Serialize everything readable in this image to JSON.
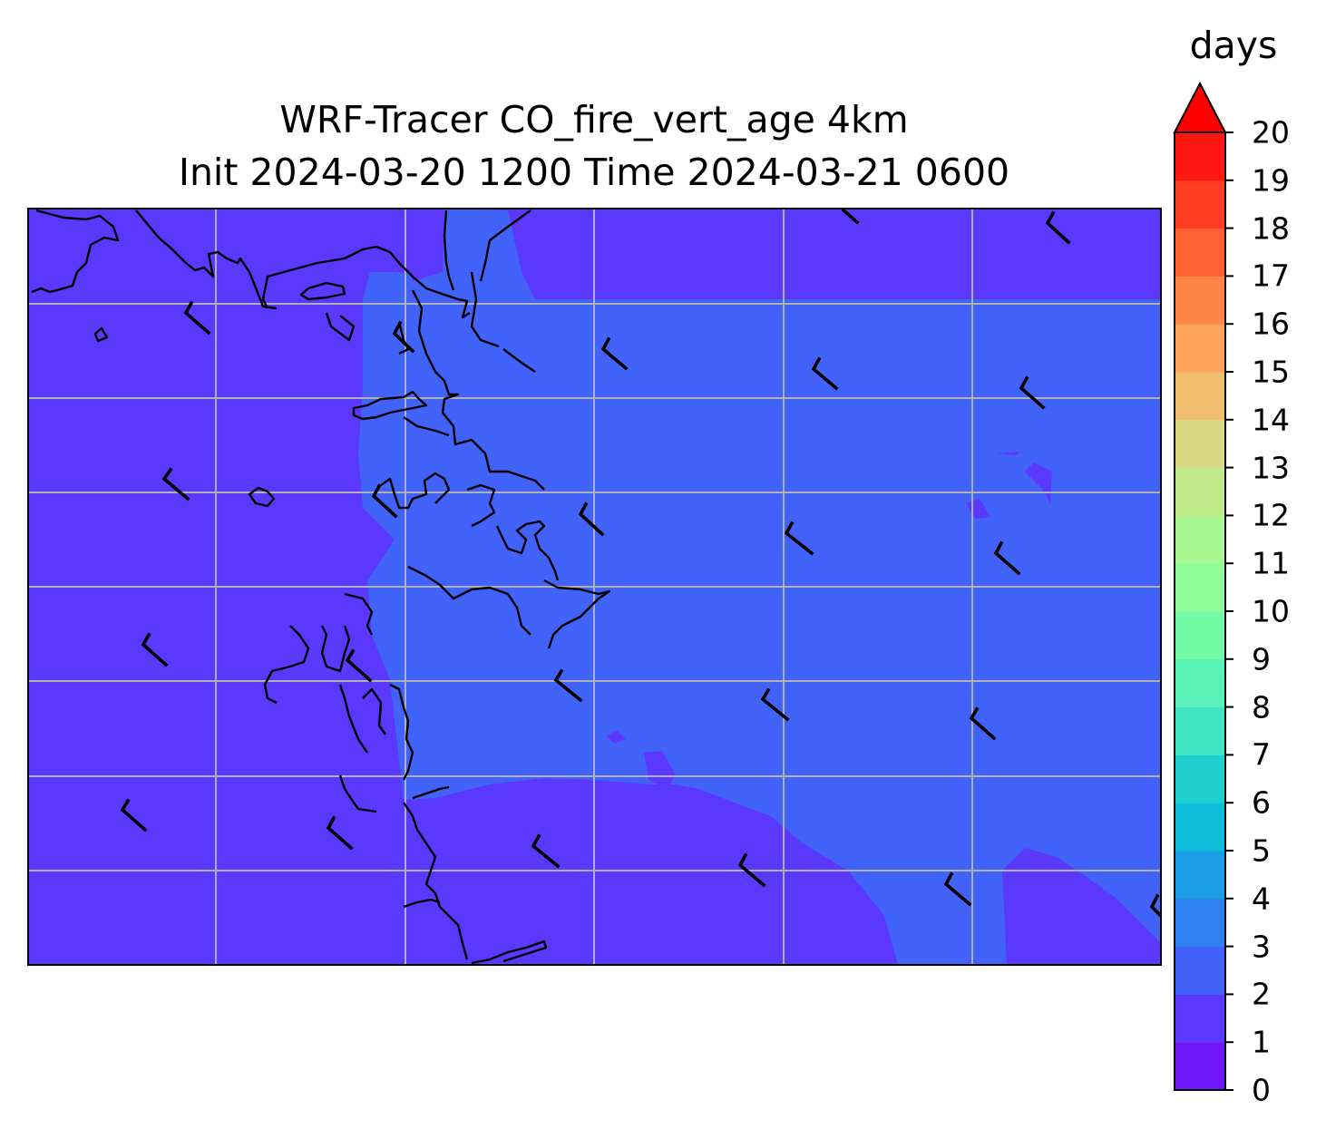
{
  "map": {
    "title_line1": "WRF-Tracer CO_fire_vert_age 4km",
    "title_line2": "Init 2024-03-20 1200 Time 2024-03-21 0600",
    "field": "CO_fire_vert_age",
    "features": [
      "filled-contours",
      "coastline",
      "graticule",
      "wind-barbs"
    ],
    "grid": true
  },
  "colorbar": {
    "unit": "days",
    "levels": [
      0,
      1,
      2,
      3,
      4,
      5,
      6,
      7,
      8,
      9,
      10,
      11,
      12,
      13,
      14,
      15,
      16,
      17,
      18,
      19,
      20
    ],
    "tick_labels": [
      "0",
      "1",
      "2",
      "3",
      "4",
      "5",
      "6",
      "7",
      "8",
      "9",
      "10",
      "11",
      "12",
      "13",
      "14",
      "15",
      "16",
      "17",
      "18",
      "19",
      "20"
    ],
    "colors": [
      "#7218f8",
      "#5a38fd",
      "#4263fa",
      "#2f80f3",
      "#1d9fe8",
      "#0dbdd9",
      "#1fcfce",
      "#42e2c4",
      "#58f1b7",
      "#73faa7",
      "#8ffc98",
      "#a8f790",
      "#c1eb8b",
      "#d9d984",
      "#f0c070",
      "#ffa35b",
      "#ff8547",
      "#ff6132",
      "#ff3d22",
      "#ff1811"
    ],
    "extend": "max",
    "extend_color": "#ff0000"
  },
  "contour_colors": {
    "outer": "#5a38fd",
    "inner": "#4263fa",
    "grid": "#b0b0b0",
    "coast": "#000000"
  }
}
